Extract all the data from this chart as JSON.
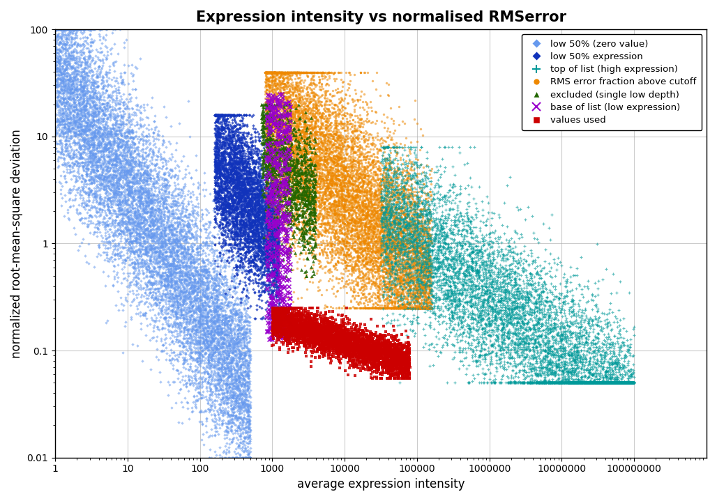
{
  "title": "Expression intensity vs normalised RMSerror",
  "xlabel": "average expression intensity",
  "ylabel": "normalized root-mean-square deviation",
  "xlim": [
    1,
    1000000000.0
  ],
  "ylim": [
    0.01,
    100
  ],
  "background_color": "#ffffff",
  "grid_color": "#aaaaaa",
  "colors": {
    "low50_zero": "#6699EE",
    "low50_expr": "#1133BB",
    "top_list": "#009999",
    "rms_above": "#EE8800",
    "excluded": "#226600",
    "base_list": "#9900CC",
    "values_used": "#CC0000"
  },
  "legend_loc": "upper right",
  "title_fontsize": 15,
  "label_fontsize": 12,
  "tick_fontsize": 10
}
